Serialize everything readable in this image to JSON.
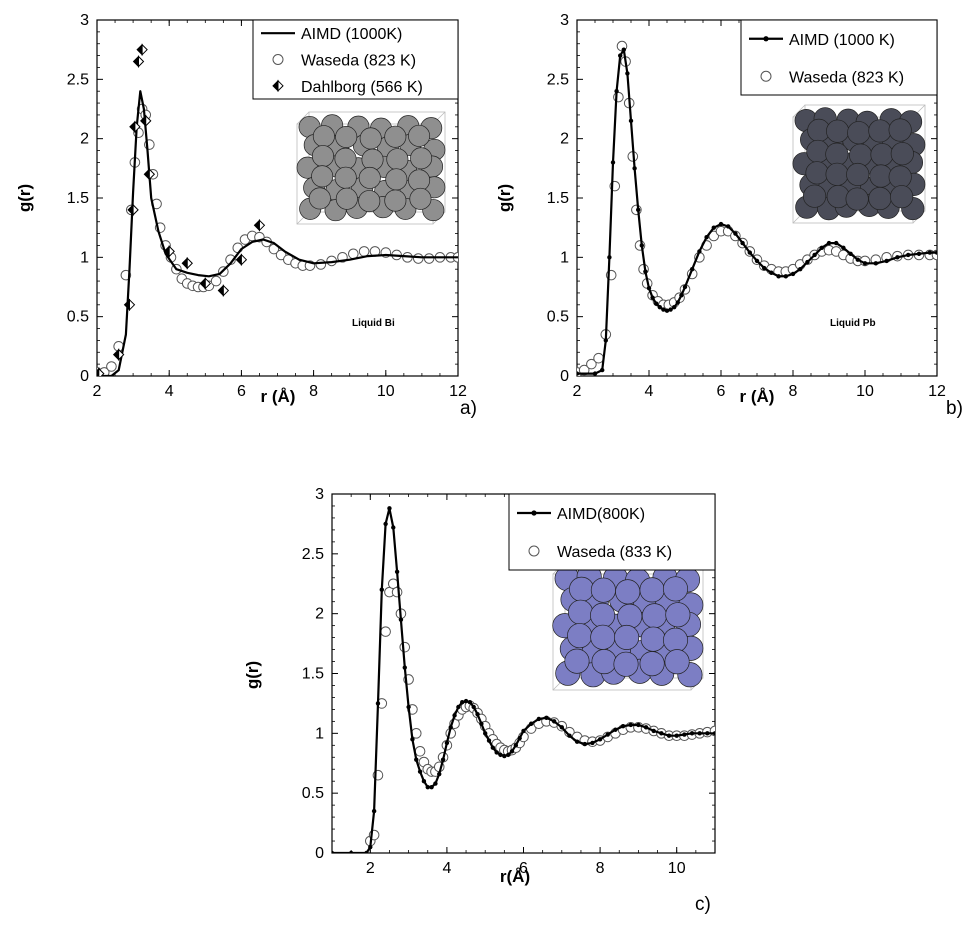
{
  "chart_data": [
    {
      "panel_label": "a)",
      "type": "line",
      "xlabel": "r (Å)",
      "ylabel": "g(r)",
      "xlim": [
        2,
        12
      ],
      "ylim": [
        0,
        3
      ],
      "xticks": [
        "2",
        "4",
        "6",
        "8",
        "10",
        "12"
      ],
      "yticks": [
        "0",
        "0.5",
        "1",
        "1.5",
        "2",
        "2.5",
        "3"
      ],
      "annotation": "Liquid Bi",
      "legend_position": "top-right",
      "inset_color": "#8f8f8f",
      "series": [
        {
          "name": "AIMD (1000K)",
          "style": "line",
          "x": [
            2,
            2.4,
            2.6,
            2.8,
            2.9,
            3.0,
            3.1,
            3.2,
            3.3,
            3.4,
            3.5,
            3.7,
            3.9,
            4.2,
            4.5,
            4.8,
            5.1,
            5.4,
            5.7,
            6.0,
            6.3,
            6.6,
            6.9,
            7.2,
            7.6,
            8.0,
            8.5,
            9.0,
            9.5,
            10.0,
            10.5,
            11.0,
            11.5,
            12.0
          ],
          "y": [
            0,
            0,
            0.05,
            0.35,
            0.9,
            1.55,
            2.1,
            2.4,
            2.25,
            1.9,
            1.5,
            1.22,
            1.03,
            0.9,
            0.87,
            0.85,
            0.84,
            0.86,
            0.95,
            1.07,
            1.13,
            1.15,
            1.12,
            1.05,
            0.98,
            0.95,
            0.96,
            0.98,
            1.01,
            1.02,
            1.01,
            1.0,
            1.0,
            1.0
          ]
        },
        {
          "name": "Waseda (823 K)",
          "style": "open-circle",
          "x": [
            2.0,
            2.2,
            2.4,
            2.6,
            2.8,
            2.95,
            3.05,
            3.15,
            3.25,
            3.35,
            3.45,
            3.55,
            3.65,
            3.75,
            3.9,
            4.05,
            4.2,
            4.35,
            4.5,
            4.65,
            4.8,
            4.95,
            5.1,
            5.3,
            5.5,
            5.7,
            5.9,
            6.1,
            6.3,
            6.5,
            6.7,
            6.9,
            7.1,
            7.3,
            7.5,
            7.7,
            7.9,
            8.2,
            8.5,
            8.8,
            9.1,
            9.4,
            9.7,
            10.0,
            10.3,
            10.6,
            10.9,
            11.2,
            11.5,
            11.8,
            12.0
          ],
          "y": [
            0.03,
            0.03,
            0.08,
            0.25,
            0.85,
            1.4,
            1.8,
            2.05,
            2.25,
            2.2,
            1.95,
            1.7,
            1.45,
            1.25,
            1.1,
            1.0,
            0.9,
            0.82,
            0.78,
            0.76,
            0.75,
            0.75,
            0.76,
            0.8,
            0.88,
            0.98,
            1.08,
            1.15,
            1.18,
            1.17,
            1.13,
            1.07,
            1.02,
            0.98,
            0.95,
            0.93,
            0.93,
            0.94,
            0.97,
            1.0,
            1.03,
            1.05,
            1.05,
            1.04,
            1.02,
            1.0,
            0.99,
            0.99,
            1.0,
            1.0,
            1.0
          ]
        },
        {
          "name": "Dahlborg (566 K)",
          "style": "half-filled-diamond",
          "x": [
            2.05,
            2.6,
            2.9,
            3.0,
            3.05,
            3.15,
            3.25,
            3.35,
            3.45,
            4.0,
            4.5,
            5.0,
            5.5,
            6.0,
            6.5
          ],
          "y": [
            0.02,
            0.18,
            0.6,
            1.4,
            2.1,
            2.65,
            2.75,
            2.15,
            1.7,
            1.05,
            0.95,
            0.78,
            0.72,
            0.98,
            1.27
          ]
        }
      ]
    },
    {
      "panel_label": "b)",
      "type": "line",
      "xlabel": "r (Å)",
      "ylabel": "g(r)",
      "xlim": [
        2,
        12
      ],
      "ylim": [
        0,
        3
      ],
      "xticks": [
        "2",
        "4",
        "6",
        "8",
        "10",
        "12"
      ],
      "yticks": [
        "0",
        "0.5",
        "1",
        "1.5",
        "2",
        "2.5",
        "3"
      ],
      "annotation": "Liquid Pb",
      "legend_position": "top-right",
      "inset_color": "#4a4c58",
      "series": [
        {
          "name": "AIMD (1000 K)",
          "style": "line-dot",
          "x": [
            2.0,
            2.5,
            2.7,
            2.8,
            2.9,
            3.0,
            3.1,
            3.2,
            3.3,
            3.4,
            3.5,
            3.6,
            3.7,
            3.8,
            3.9,
            4.0,
            4.1,
            4.2,
            4.3,
            4.4,
            4.5,
            4.6,
            4.7,
            4.8,
            4.9,
            5.0,
            5.2,
            5.4,
            5.6,
            5.8,
            6.0,
            6.2,
            6.4,
            6.6,
            6.8,
            7.0,
            7.2,
            7.4,
            7.6,
            7.8,
            8.0,
            8.2,
            8.4,
            8.6,
            8.8,
            9.0,
            9.2,
            9.4,
            9.6,
            9.8,
            10.0,
            10.3,
            10.6,
            10.9,
            11.2,
            11.5,
            11.8,
            12.0
          ],
          "y": [
            0.02,
            0.02,
            0.05,
            0.3,
            1.0,
            1.8,
            2.4,
            2.7,
            2.75,
            2.55,
            2.15,
            1.75,
            1.4,
            1.1,
            0.88,
            0.74,
            0.66,
            0.61,
            0.58,
            0.56,
            0.55,
            0.56,
            0.58,
            0.62,
            0.68,
            0.75,
            0.9,
            1.05,
            1.17,
            1.25,
            1.28,
            1.26,
            1.2,
            1.12,
            1.04,
            0.97,
            0.91,
            0.87,
            0.84,
            0.84,
            0.86,
            0.9,
            0.96,
            1.02,
            1.08,
            1.12,
            1.12,
            1.08,
            1.03,
            0.98,
            0.95,
            0.95,
            0.97,
            1.0,
            1.02,
            1.03,
            1.04,
            1.04
          ]
        },
        {
          "name": "Waseda (823 K)",
          "style": "open-circle",
          "x": [
            2.0,
            2.2,
            2.4,
            2.6,
            2.8,
            2.95,
            3.05,
            3.15,
            3.25,
            3.35,
            3.45,
            3.55,
            3.65,
            3.75,
            3.85,
            3.95,
            4.1,
            4.25,
            4.4,
            4.55,
            4.7,
            4.85,
            5.0,
            5.2,
            5.4,
            5.6,
            5.8,
            6.0,
            6.2,
            6.4,
            6.6,
            6.8,
            7.0,
            7.2,
            7.4,
            7.6,
            7.8,
            8.0,
            8.2,
            8.4,
            8.6,
            8.8,
            9.0,
            9.2,
            9.4,
            9.6,
            9.8,
            10.0,
            10.3,
            10.6,
            10.9,
            11.2,
            11.5,
            11.8,
            12.0
          ],
          "y": [
            0.03,
            0.05,
            0.1,
            0.15,
            0.35,
            0.85,
            1.6,
            2.35,
            2.78,
            2.65,
            2.3,
            1.85,
            1.4,
            1.1,
            0.9,
            0.78,
            0.68,
            0.63,
            0.6,
            0.6,
            0.62,
            0.66,
            0.73,
            0.86,
            1.0,
            1.1,
            1.18,
            1.22,
            1.22,
            1.18,
            1.12,
            1.05,
            0.98,
            0.93,
            0.9,
            0.88,
            0.88,
            0.9,
            0.94,
            0.98,
            1.02,
            1.05,
            1.06,
            1.05,
            1.02,
            0.99,
            0.97,
            0.97,
            0.98,
            1.0,
            1.01,
            1.02,
            1.02,
            1.02,
            1.02
          ]
        }
      ]
    },
    {
      "panel_label": "c)",
      "type": "line",
      "xlabel": "r(Å)",
      "ylabel": "g(r)",
      "xlim": [
        1,
        11
      ],
      "ylim": [
        0,
        3
      ],
      "xticks": [
        "2",
        "4",
        "6",
        "8",
        "10"
      ],
      "yticks": [
        "0",
        "0.5",
        "1",
        "1.5",
        "2",
        "2.5",
        "3"
      ],
      "annotation": "",
      "legend_position": "top-right",
      "inset_color": "#7c7ec4",
      "series": [
        {
          "name": "AIMD(800K)",
          "style": "line-dot",
          "x": [
            1.0,
            1.5,
            1.9,
            2.0,
            2.1,
            2.2,
            2.3,
            2.4,
            2.5,
            2.6,
            2.7,
            2.8,
            2.9,
            3.0,
            3.1,
            3.2,
            3.3,
            3.4,
            3.5,
            3.6,
            3.7,
            3.8,
            3.9,
            4.0,
            4.1,
            4.2,
            4.3,
            4.4,
            4.5,
            4.6,
            4.7,
            4.8,
            4.9,
            5.0,
            5.1,
            5.2,
            5.3,
            5.4,
            5.5,
            5.6,
            5.7,
            5.8,
            5.9,
            6.0,
            6.2,
            6.4,
            6.6,
            6.8,
            7.0,
            7.2,
            7.4,
            7.6,
            7.8,
            8.0,
            8.2,
            8.4,
            8.6,
            8.8,
            9.0,
            9.2,
            9.4,
            9.6,
            9.8,
            10.0,
            10.2,
            10.4,
            10.6,
            10.8,
            11.0
          ],
          "y": [
            0,
            0,
            0,
            0.05,
            0.35,
            1.25,
            2.2,
            2.75,
            2.88,
            2.72,
            2.35,
            1.95,
            1.55,
            1.22,
            0.95,
            0.78,
            0.68,
            0.6,
            0.55,
            0.55,
            0.58,
            0.66,
            0.78,
            0.92,
            1.05,
            1.15,
            1.22,
            1.26,
            1.27,
            1.26,
            1.22,
            1.16,
            1.08,
            1.0,
            0.94,
            0.88,
            0.84,
            0.82,
            0.81,
            0.82,
            0.85,
            0.9,
            0.96,
            1.02,
            1.08,
            1.12,
            1.13,
            1.1,
            1.05,
            0.98,
            0.93,
            0.91,
            0.92,
            0.95,
            0.99,
            1.03,
            1.06,
            1.07,
            1.07,
            1.05,
            1.02,
            1.0,
            0.98,
            0.98,
            0.99,
            1.0,
            1.0,
            1.0,
            1.0
          ]
        },
        {
          "name": "Waseda (833 K)",
          "style": "open-circle",
          "x": [
            2.0,
            2.1,
            2.2,
            2.3,
            2.4,
            2.5,
            2.6,
            2.7,
            2.8,
            2.9,
            3.0,
            3.1,
            3.2,
            3.3,
            3.4,
            3.5,
            3.6,
            3.7,
            3.8,
            3.9,
            4.0,
            4.1,
            4.2,
            4.3,
            4.4,
            4.5,
            4.6,
            4.7,
            4.8,
            4.9,
            5.0,
            5.1,
            5.2,
            5.3,
            5.4,
            5.5,
            5.6,
            5.7,
            5.8,
            5.9,
            6.0,
            6.2,
            6.4,
            6.6,
            6.8,
            7.0,
            7.2,
            7.4,
            7.6,
            7.8,
            8.0,
            8.2,
            8.4,
            8.6,
            8.8,
            9.0,
            9.2,
            9.4,
            9.6,
            9.8,
            10.0,
            10.2,
            10.4,
            10.6,
            10.8,
            11.0
          ],
          "y": [
            0.1,
            0.15,
            0.65,
            1.25,
            1.85,
            2.18,
            2.25,
            2.18,
            2.0,
            1.72,
            1.45,
            1.2,
            1.0,
            0.85,
            0.76,
            0.7,
            0.68,
            0.68,
            0.72,
            0.8,
            0.9,
            1.0,
            1.08,
            1.15,
            1.2,
            1.22,
            1.23,
            1.21,
            1.17,
            1.12,
            1.06,
            1.0,
            0.95,
            0.91,
            0.88,
            0.86,
            0.85,
            0.86,
            0.88,
            0.92,
            0.97,
            1.04,
            1.08,
            1.1,
            1.09,
            1.06,
            1.01,
            0.97,
            0.94,
            0.93,
            0.94,
            0.97,
            1.0,
            1.03,
            1.05,
            1.05,
            1.04,
            1.02,
            1.0,
            0.98,
            0.98,
            0.98,
            0.99,
            1.0,
            1.01,
            1.02
          ]
        }
      ]
    }
  ]
}
